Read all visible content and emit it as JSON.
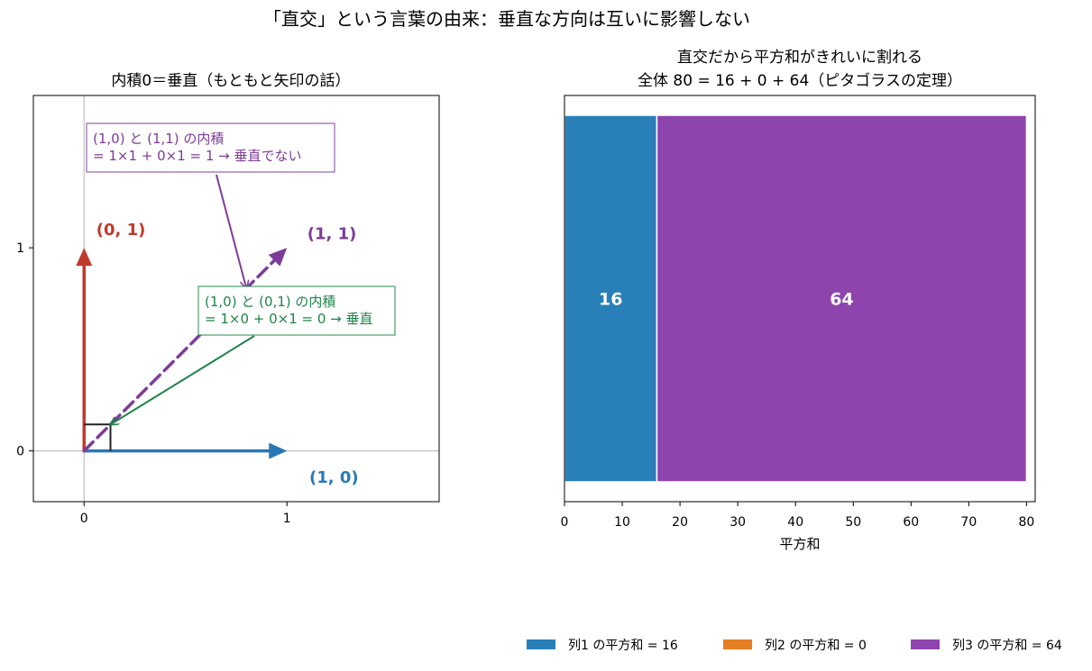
{
  "suptitle": "「直交」という言葉の由来：垂直な方向は互いに影響しない",
  "chart_data": [
    {
      "type": "vector",
      "title": "内積0＝垂直（もともと矢印の話）",
      "xlim": [
        -0.25,
        1.75
      ],
      "ylim": [
        -0.25,
        1.75
      ],
      "xticks": [
        0,
        1
      ],
      "yticks": [
        0,
        1
      ],
      "grid": false,
      "vectors": [
        {
          "label": "(1, 0)",
          "x": 1,
          "y": 0,
          "color": "#2878b5",
          "style": "solid"
        },
        {
          "label": "(0, 1)",
          "x": 0,
          "y": 1,
          "color": "#c0392b",
          "style": "solid"
        },
        {
          "label": "(1, 1)",
          "x": 1,
          "y": 1,
          "color": "#7d3c98",
          "style": "dashed"
        }
      ],
      "annotations": [
        {
          "lines": [
            "(1,0) と (1,1) の内積",
            "= 1×1 + 0×1 = 1 → 垂直でない"
          ],
          "color": "#7d3c98",
          "target": [
            0.8,
            0.8
          ]
        },
        {
          "lines": [
            "(1,0) と (0,1) の内積",
            "= 1×0 + 0×1 = 0 → 垂直"
          ],
          "color": "#1e8449",
          "target": [
            0.13,
            0.13
          ]
        }
      ],
      "right_angle_marker": 0.13
    },
    {
      "type": "bar",
      "orientation": "horizontal-stacked",
      "title_lines": [
        "直交だから平方和がきれいに割れる",
        "全体 80 = 16 + 0 + 64（ピタゴラスの定理）"
      ],
      "xlabel": "平方和",
      "xlim": [
        0,
        81.5
      ],
      "xticks": [
        0,
        10,
        20,
        30,
        40,
        50,
        60,
        70,
        80
      ],
      "series": [
        {
          "name": "列1 の平方和 = 16",
          "value": 16,
          "color": "#2980b9"
        },
        {
          "name": "列2 の平方和 = 0",
          "value": 0,
          "color": "#e67e22"
        },
        {
          "name": "列3 の平方和 = 64",
          "value": 64,
          "color": "#8e44ad"
        }
      ],
      "legend_position": "bottom-right"
    }
  ]
}
